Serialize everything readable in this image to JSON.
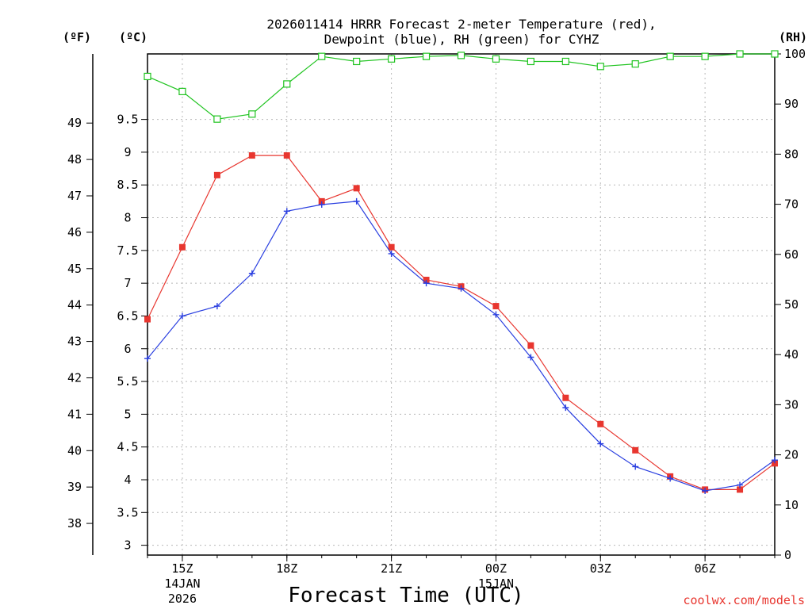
{
  "chart_data": {
    "type": "line",
    "title_line1": "2026011414 HRRR Forecast 2-meter Temperature (red),",
    "title_line2": "Dewpoint (blue), RH (green) for CYHZ",
    "xlabel": "Forecast Time (UTC)",
    "credit": "coolwx.com/models",
    "units": {
      "fahrenheit": "(ºF)",
      "celsius": "(ºC)",
      "rh": "(RH)"
    },
    "x_hours": [
      0,
      1,
      2,
      3,
      4,
      5,
      6,
      7,
      8,
      9,
      10,
      11,
      12,
      13,
      14,
      15,
      16,
      17,
      18
    ],
    "x_ticks": [
      {
        "hour": 1,
        "label": "15Z",
        "sub1": "14JAN",
        "sub2": "2026"
      },
      {
        "hour": 4,
        "label": "18Z",
        "sub1": "",
        "sub2": ""
      },
      {
        "hour": 7,
        "label": "21Z",
        "sub1": "",
        "sub2": ""
      },
      {
        "hour": 10,
        "label": "00Z",
        "sub1": "15JAN",
        "sub2": ""
      },
      {
        "hour": 13,
        "label": "03Z",
        "sub1": "",
        "sub2": ""
      },
      {
        "hour": 16,
        "label": "06Z",
        "sub1": "",
        "sub2": ""
      }
    ],
    "celsius_axis": {
      "min": 2.85,
      "max": 10.5,
      "ticks": [
        3,
        3.5,
        4,
        4.5,
        5,
        5.5,
        6,
        6.5,
        7,
        7.5,
        8,
        8.5,
        9,
        9.5
      ],
      "tick_labels": [
        "3",
        "3.5",
        "4",
        "4.5",
        "5",
        "5.5",
        "6",
        "6.5",
        "7",
        "7.5",
        "8",
        "8.5",
        "9",
        "9.5"
      ]
    },
    "fahrenheit_ticks": [
      "38",
      "39",
      "40",
      "41",
      "42",
      "43",
      "44",
      "45",
      "46",
      "47",
      "48",
      "49"
    ],
    "rh_axis": {
      "min": 0,
      "max": 100,
      "ticks": [
        "0",
        "10",
        "20",
        "30",
        "40",
        "50",
        "60",
        "70",
        "80",
        "90",
        "100"
      ]
    },
    "series": [
      {
        "name": "Temperature",
        "units": "C",
        "color": "#e8362f",
        "marker": "filled-square",
        "values": [
          6.45,
          7.55,
          8.65,
          8.95,
          8.95,
          8.25,
          8.45,
          7.55,
          7.05,
          6.95,
          6.65,
          6.05,
          5.25,
          4.85,
          4.45,
          4.05,
          3.85,
          3.85,
          4.25
        ]
      },
      {
        "name": "Dewpoint",
        "units": "C",
        "color": "#2a3fe0",
        "marker": "plus",
        "values": [
          5.85,
          6.5,
          6.65,
          7.15,
          8.1,
          8.2,
          8.25,
          7.45,
          7.0,
          6.92,
          6.52,
          5.87,
          5.1,
          4.55,
          4.2,
          4.02,
          3.83,
          3.92,
          4.3
        ]
      },
      {
        "name": "RH",
        "units": "%",
        "color": "#21c421",
        "marker": "open-square",
        "values": [
          95.5,
          92.5,
          87,
          88,
          94,
          99.5,
          98.5,
          99,
          99.5,
          99.7,
          99,
          98.5,
          98.5,
          97.5,
          98,
          99.5,
          99.5,
          100,
          100
        ]
      }
    ]
  }
}
